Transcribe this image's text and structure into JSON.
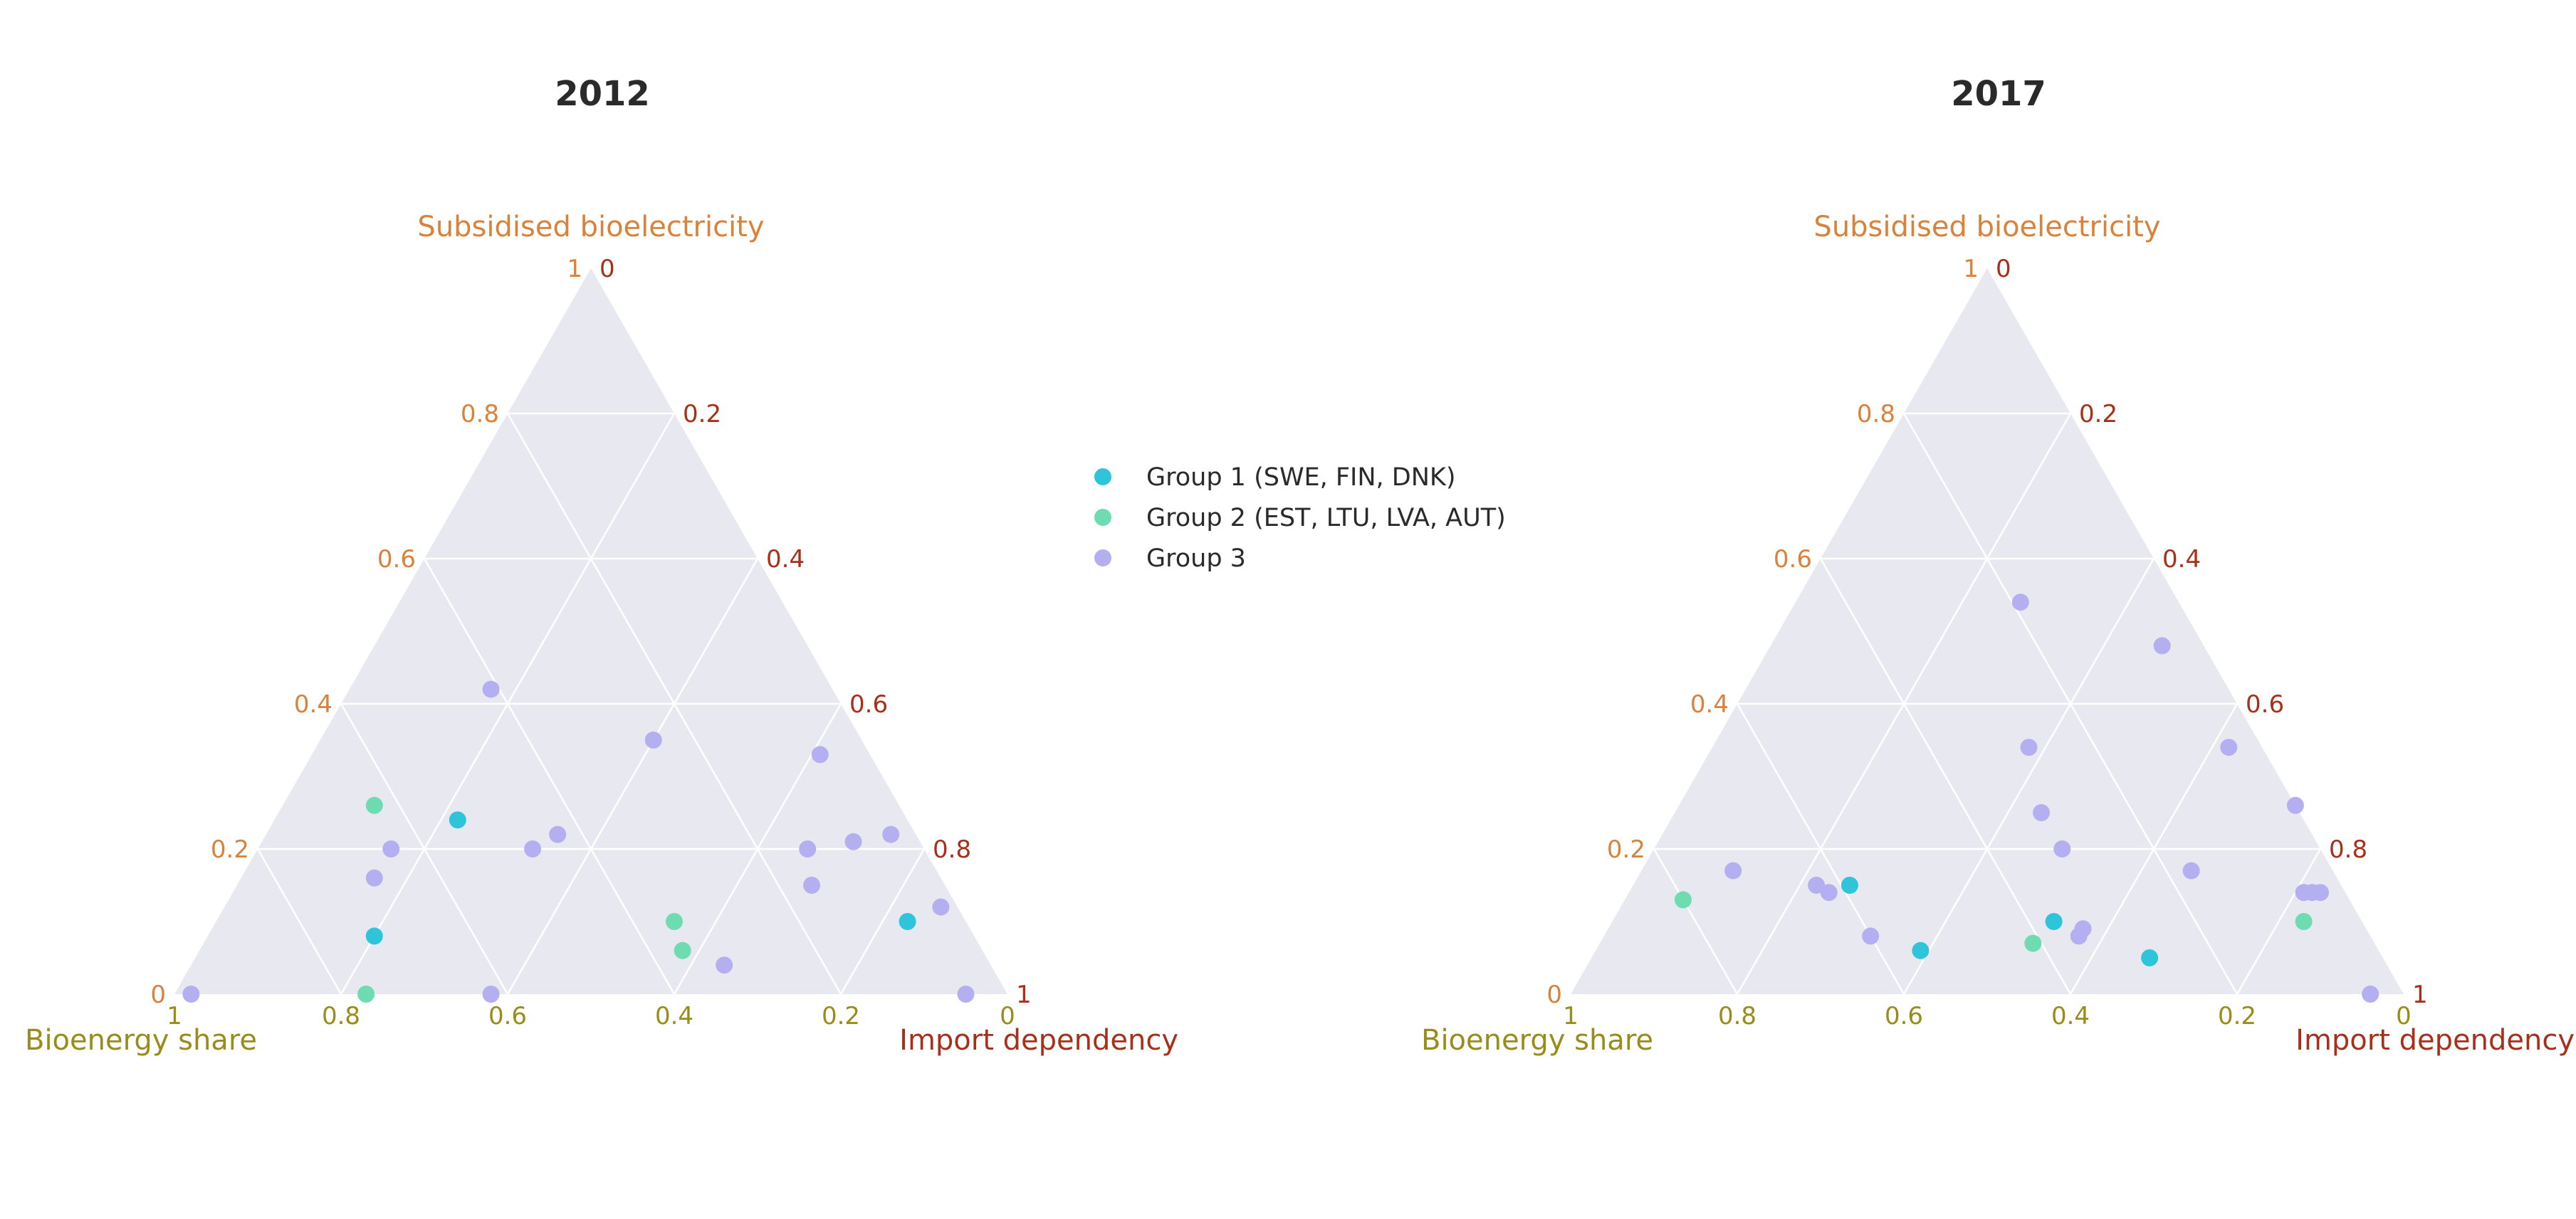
{
  "figure": {
    "legend": [
      {
        "key": "g1",
        "label": "Group 1 (SWE, FIN, DNK)"
      },
      {
        "key": "g2",
        "label": "Group 2 (EST, LTU, LVA, AUT)"
      },
      {
        "key": "g3",
        "label": "Group 3"
      }
    ],
    "colors": {
      "g1": "#2ec4d9",
      "g2": "#6fdbb0",
      "g3": "#b4aff0",
      "triangle_fill": "#e8e8f0",
      "grid": "#ffffff",
      "axis_a": "#d9823a",
      "axis_b": "#9a8c1a",
      "axis_c": "#a8301a"
    },
    "tick_labels": [
      "0",
      "0.2",
      "0.4",
      "0.6",
      "0.8",
      "1"
    ]
  },
  "chart_data": [
    {
      "type": "scatter",
      "subtype": "ternary",
      "title": "2012",
      "axes": {
        "a": "Subsidised bioelectricity",
        "b": "Bioenergy share",
        "c": "Import dependency"
      },
      "series": [
        {
          "key": "g1",
          "name": "Group 1 (SWE, FIN, DNK)",
          "points": [
            {
              "a": 0.24,
              "b": 0.54,
              "c": 0.22
            },
            {
              "a": 0.08,
              "b": 0.72,
              "c": 0.2
            },
            {
              "a": 0.1,
              "b": 0.07,
              "c": 0.83
            }
          ]
        },
        {
          "key": "g2",
          "name": "Group 2 (EST, LTU, LVA, AUT)",
          "points": [
            {
              "a": 0.26,
              "b": 0.63,
              "c": 0.11
            },
            {
              "a": 0.0,
              "b": 0.77,
              "c": 0.23
            },
            {
              "a": 0.1,
              "b": 0.35,
              "c": 0.55
            },
            {
              "a": 0.06,
              "b": 0.36,
              "c": 0.58
            }
          ]
        },
        {
          "key": "g3",
          "name": "Group 3",
          "points": [
            {
              "a": 0.42,
              "b": 0.41,
              "c": 0.17
            },
            {
              "a": 0.35,
              "b": 0.25,
              "c": 0.4
            },
            {
              "a": 0.33,
              "b": 0.06,
              "c": 0.61
            },
            {
              "a": 0.22,
              "b": 0.43,
              "c": 0.35
            },
            {
              "a": 0.2,
              "b": 0.47,
              "c": 0.33
            },
            {
              "a": 0.2,
              "b": 0.64,
              "c": 0.16
            },
            {
              "a": 0.16,
              "b": 0.68,
              "c": 0.16
            },
            {
              "a": 0.2,
              "b": 0.14,
              "c": 0.66
            },
            {
              "a": 0.21,
              "b": 0.08,
              "c": 0.71
            },
            {
              "a": 0.22,
              "b": 0.03,
              "c": 0.75
            },
            {
              "a": 0.15,
              "b": 0.16,
              "c": 0.69
            },
            {
              "a": 0.12,
              "b": 0.02,
              "c": 0.86
            },
            {
              "a": 0.04,
              "b": 0.32,
              "c": 0.64
            },
            {
              "a": 0.0,
              "b": 0.98,
              "c": 0.02
            },
            {
              "a": 0.0,
              "b": 0.62,
              "c": 0.38
            },
            {
              "a": 0.0,
              "b": 0.05,
              "c": 0.95
            }
          ]
        }
      ]
    },
    {
      "type": "scatter",
      "subtype": "ternary",
      "title": "2017",
      "axes": {
        "a": "Subsidised bioelectricity",
        "b": "Bioenergy share",
        "c": "Import dependency"
      },
      "series": [
        {
          "key": "g1",
          "name": "Group 1 (SWE, FIN, DNK)",
          "points": [
            {
              "a": 0.15,
              "b": 0.59,
              "c": 0.26
            },
            {
              "a": 0.06,
              "b": 0.55,
              "c": 0.39
            },
            {
              "a": 0.1,
              "b": 0.37,
              "c": 0.53
            },
            {
              "a": 0.05,
              "b": 0.28,
              "c": 0.67
            }
          ]
        },
        {
          "key": "g2",
          "name": "Group 2 (EST, LTU, LVA, AUT)",
          "points": [
            {
              "a": 0.13,
              "b": 0.8,
              "c": 0.07
            },
            {
              "a": 0.07,
              "b": 0.41,
              "c": 0.52
            },
            {
              "a": 0.1,
              "b": 0.07,
              "c": 0.83
            }
          ]
        },
        {
          "key": "g3",
          "name": "Group 3",
          "points": [
            {
              "a": 0.54,
              "b": 0.19,
              "c": 0.27
            },
            {
              "a": 0.48,
              "b": 0.05,
              "c": 0.47
            },
            {
              "a": 0.34,
              "b": 0.28,
              "c": 0.38
            },
            {
              "a": 0.34,
              "b": 0.04,
              "c": 0.62
            },
            {
              "a": 0.26,
              "b": 0.0,
              "c": 0.74
            },
            {
              "a": 0.25,
              "b": 0.31,
              "c": 0.44
            },
            {
              "a": 0.2,
              "b": 0.31,
              "c": 0.49
            },
            {
              "a": 0.17,
              "b": 0.17,
              "c": 0.66
            },
            {
              "a": 0.17,
              "b": 0.72,
              "c": 0.11
            },
            {
              "a": 0.15,
              "b": 0.63,
              "c": 0.22
            },
            {
              "a": 0.14,
              "b": 0.62,
              "c": 0.24
            },
            {
              "a": 0.08,
              "b": 0.6,
              "c": 0.32
            },
            {
              "a": 0.09,
              "b": 0.34,
              "c": 0.57
            },
            {
              "a": 0.08,
              "b": 0.35,
              "c": 0.57
            },
            {
              "a": 0.14,
              "b": 0.05,
              "c": 0.81
            },
            {
              "a": 0.14,
              "b": 0.04,
              "c": 0.82
            },
            {
              "a": 0.14,
              "b": 0.03,
              "c": 0.83
            },
            {
              "a": 0.0,
              "b": 0.04,
              "c": 0.96
            }
          ]
        }
      ]
    }
  ]
}
